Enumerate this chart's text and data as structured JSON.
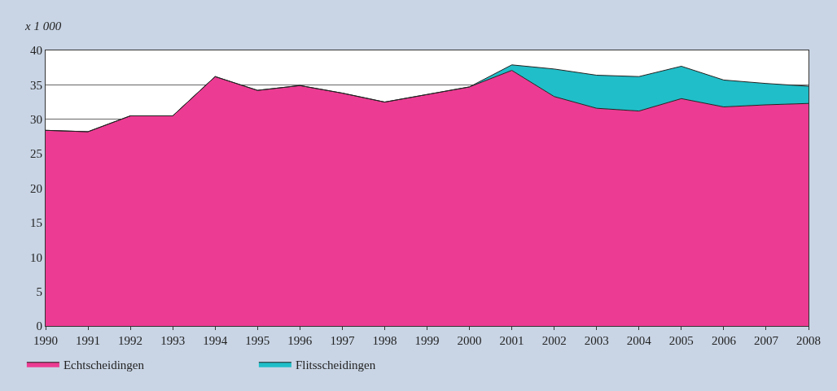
{
  "chart_data": {
    "type": "area",
    "ylabel": "x 1 000",
    "stacked": true,
    "x": [
      1990,
      1991,
      1992,
      1993,
      1994,
      1995,
      1996,
      1997,
      1998,
      1999,
      2000,
      2001,
      2002,
      2003,
      2004,
      2005,
      2006,
      2007,
      2008
    ],
    "series": [
      {
        "name": "Echtscheidingen",
        "color": "#ec3b92",
        "values": [
          28.4,
          28.2,
          30.5,
          30.5,
          36.2,
          34.2,
          34.9,
          33.8,
          32.5,
          33.6,
          34.7,
          37.1,
          33.3,
          31.6,
          31.2,
          33.0,
          31.8,
          32.1,
          32.3
        ]
      },
      {
        "name": "Flitsscheidingen",
        "color": "#20bec8",
        "values": [
          0,
          0,
          0,
          0,
          0,
          0,
          0,
          0,
          0,
          0,
          0,
          0.8,
          4.0,
          4.8,
          5.0,
          4.7,
          3.9,
          3.1,
          2.5
        ]
      }
    ],
    "xlim": [
      1990,
      2008
    ],
    "xticks": [
      1990,
      1991,
      1992,
      1993,
      1994,
      1995,
      1996,
      1997,
      1998,
      1999,
      2000,
      2001,
      2002,
      2003,
      2004,
      2005,
      2006,
      2007,
      2008
    ],
    "ylim": [
      0,
      40
    ],
    "yticks": [
      0,
      5,
      10,
      15,
      20,
      25,
      30,
      35,
      40
    ],
    "grid": "y",
    "legend": "bottom left"
  }
}
